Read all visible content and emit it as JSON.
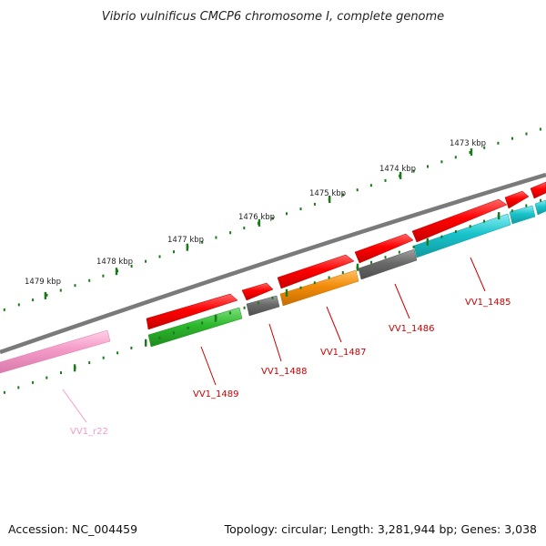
{
  "title": "Vibrio vulnificus CMCP6 chromosome I, complete genome",
  "footer": {
    "accession": "Accession: NC_004459",
    "summary": "Topology: circular; Length: 3,281,944 bp; Genes: 3,038"
  },
  "ticks": [
    {
      "label": "1479 kbp"
    },
    {
      "label": "1478 kbp"
    },
    {
      "label": "1477 kbp"
    },
    {
      "label": "1476 kbp"
    },
    {
      "label": "1475 kbp"
    },
    {
      "label": "1474 kbp"
    },
    {
      "label": "1473 kbp"
    }
  ],
  "genes": [
    {
      "name": "VV1_r22",
      "color": "#f49ac8"
    },
    {
      "name": "VV1_1489",
      "color": "#2db82d"
    },
    {
      "name": "VV1_1488",
      "color": "#6a6a6a"
    },
    {
      "name": "VV1_1487",
      "color": "#f28c0a"
    },
    {
      "name": "VV1_1486",
      "color": "#6a6a6a"
    },
    {
      "name": "VV1_1485",
      "color": "#19c4cc"
    }
  ],
  "colors": {
    "forward_strand": "#ff0000",
    "label_text": "#cc0000",
    "rna_label_text": "#f49ac8",
    "tick_marks": "#1a7a1a",
    "backbone": "#7a7a7a"
  }
}
